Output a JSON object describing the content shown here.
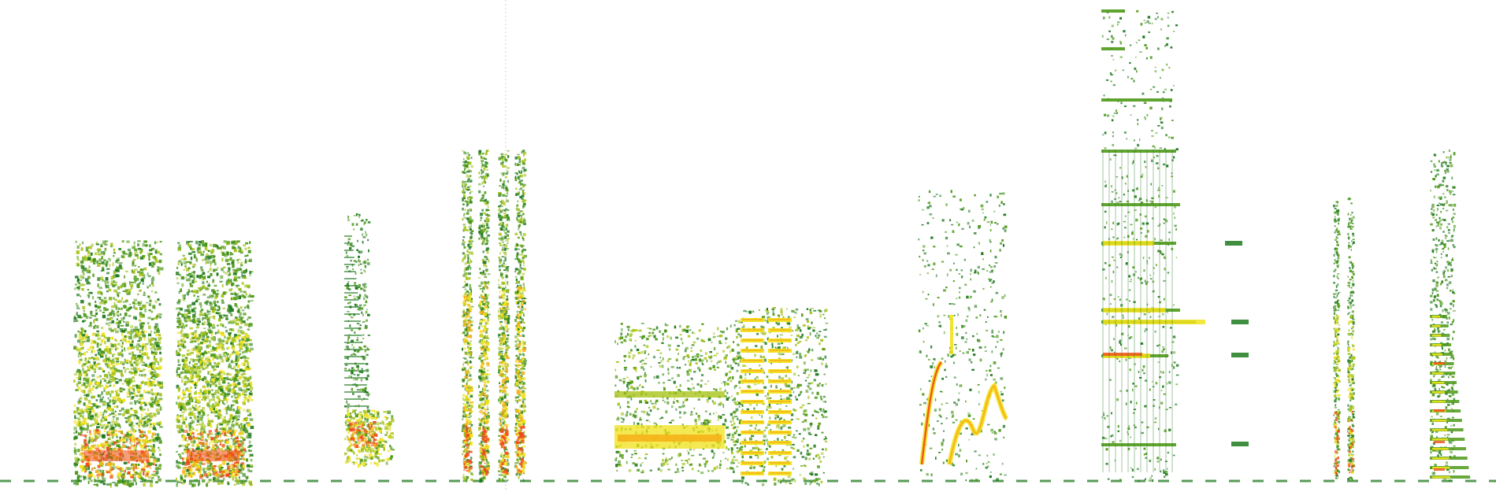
{
  "image": {
    "kind": "spectrogram",
    "background_color": "#ffffff",
    "colormap": [
      "#1f7a1f",
      "#4f9a1a",
      "#a7c41a",
      "#f2e21a",
      "#f6b21a",
      "#f04a1a"
    ]
  },
  "segments": [
    {
      "id": "broadband-noise-burst-1"
    },
    {
      "id": "broadband-noise-burst-2"
    },
    {
      "id": "low-frequency-chirp"
    },
    {
      "id": "vertical-click-train"
    },
    {
      "id": "harmonic-band-block"
    },
    {
      "id": "ladder-harmonic-block"
    },
    {
      "id": "frequency-modulated-sweeps"
    },
    {
      "id": "tonal-harmonic-stack"
    },
    {
      "id": "narrow-vertical-pair"
    },
    {
      "id": "dense-harmonic-column"
    }
  ]
}
